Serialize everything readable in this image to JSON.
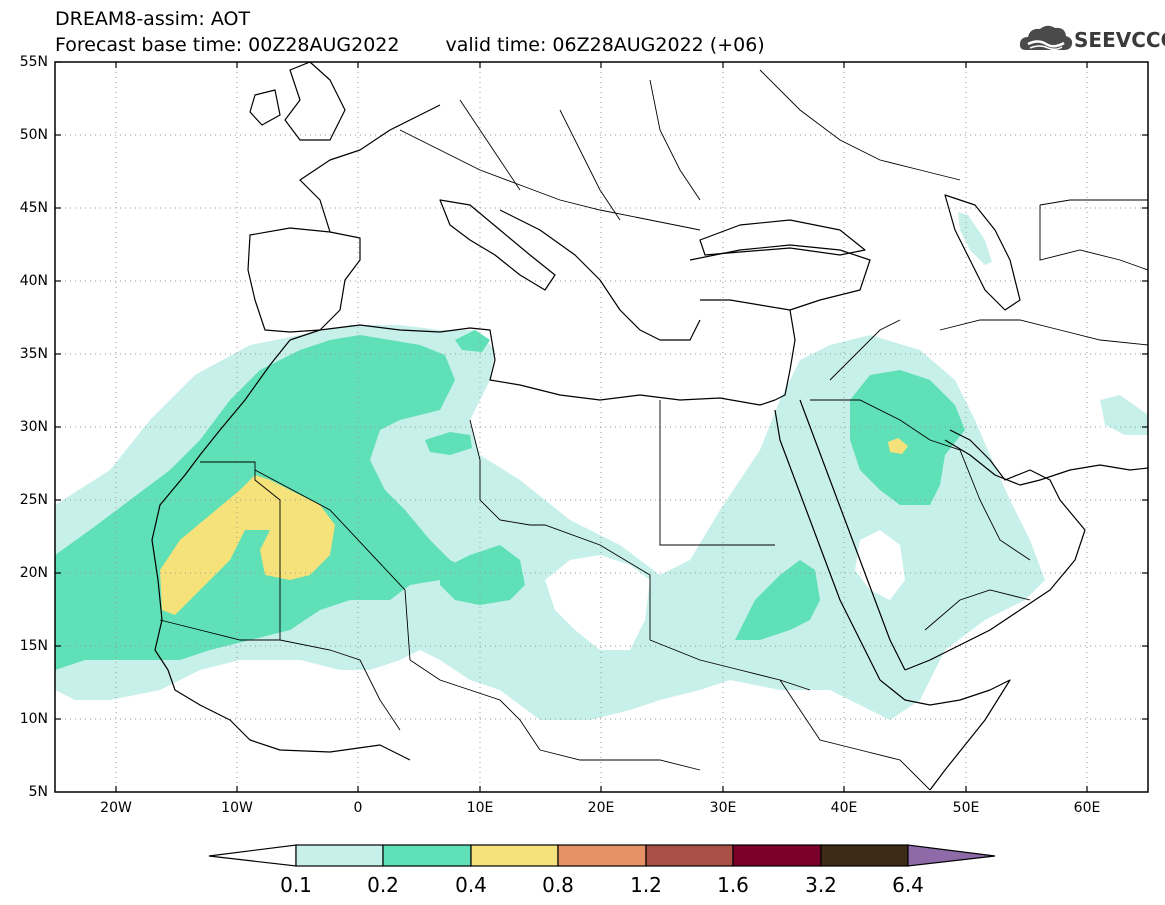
{
  "header": {
    "title": "DREAM8-assim: AOT",
    "base_time": "Forecast base time: 00Z28AUG2022",
    "valid_time": "valid time: 06Z28AUG2022 (+06)"
  },
  "logo": {
    "text": "SEEVCCC",
    "icon": "cloud-icon"
  },
  "map": {
    "lat_labels": [
      "55N",
      "50N",
      "45N",
      "40N",
      "35N",
      "30N",
      "25N",
      "20N",
      "15N",
      "10N",
      "5N"
    ],
    "lon_labels": [
      "20W",
      "10W",
      "0",
      "10E",
      "20E",
      "30E",
      "40E",
      "50E",
      "60E"
    ],
    "extent": {
      "lon_min": -25,
      "lon_max": 65,
      "lat_min": 5,
      "lat_max": 55
    }
  },
  "colorbar": {
    "labels": [
      "0.1",
      "0.2",
      "0.4",
      "0.8",
      "1.2",
      "1.6",
      "3.2",
      "6.4"
    ],
    "colors": [
      "#ffffff",
      "#c8f0ea",
      "#5fe0b6",
      "#f6e27a",
      "#e69266",
      "#aa4f46",
      "#7a0029",
      "#3d2a17",
      "#8e6aa8"
    ]
  }
}
